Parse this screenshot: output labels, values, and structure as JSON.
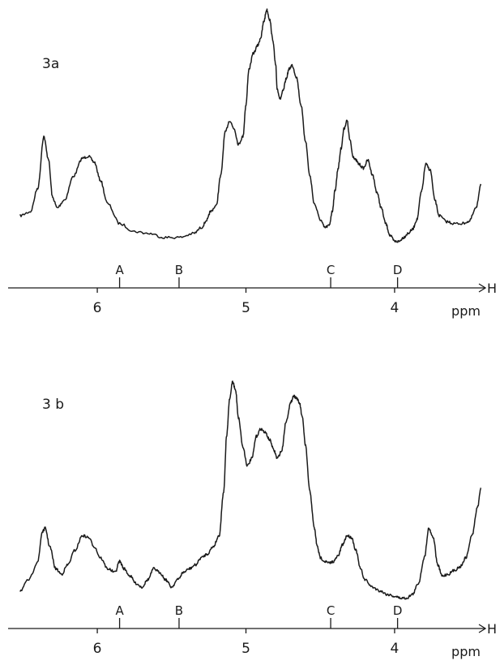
{
  "chart_data": [
    {
      "type": "line",
      "panel_label": "3a",
      "x_unit": "ppm",
      "x_axis_end_label": "H",
      "x_ticks": [
        "6",
        "5",
        "4"
      ],
      "xlim": [
        6.6,
        3.4
      ],
      "ylim": [
        0,
        1.2
      ],
      "markers": [
        {
          "label": "A",
          "ppm": 5.85
        },
        {
          "label": "B",
          "ppm": 5.45
        },
        {
          "label": "C",
          "ppm": 4.43
        },
        {
          "label": "D",
          "ppm": 3.98
        }
      ],
      "series": [
        {
          "x": [
            6.52,
            6.45,
            6.4,
            6.36,
            6.33,
            6.3,
            6.27,
            6.22,
            6.16,
            6.1,
            6.06,
            6.02,
            5.98,
            5.93,
            5.85,
            5.75,
            5.65,
            5.55,
            5.45,
            5.35,
            5.3,
            5.26,
            5.24,
            5.2,
            5.17,
            5.14,
            5.11,
            5.08,
            5.05,
            5.02,
            5.0,
            4.98,
            4.95,
            4.92,
            4.9,
            4.88,
            4.86,
            4.84,
            4.82,
            4.8,
            4.79,
            4.77,
            4.75,
            4.73,
            4.71,
            4.69,
            4.66,
            4.63,
            4.6,
            4.57,
            4.54,
            4.5,
            4.47,
            4.44,
            4.42,
            4.4,
            4.38,
            4.36,
            4.34,
            4.32,
            4.3,
            4.28,
            4.26,
            4.24,
            4.21,
            4.18,
            4.15,
            4.12,
            4.09,
            4.06,
            4.03,
            4.0,
            3.97,
            3.94,
            3.91,
            3.88,
            3.85,
            3.82,
            3.79,
            3.76,
            3.73,
            3.7,
            3.65,
            3.6,
            3.55,
            3.5,
            3.45,
            3.42
          ],
          "y": [
            0.16,
            0.18,
            0.3,
            0.56,
            0.45,
            0.25,
            0.2,
            0.24,
            0.36,
            0.45,
            0.46,
            0.43,
            0.34,
            0.22,
            0.12,
            0.08,
            0.07,
            0.05,
            0.05,
            0.07,
            0.1,
            0.14,
            0.18,
            0.21,
            0.36,
            0.58,
            0.64,
            0.6,
            0.52,
            0.56,
            0.72,
            0.9,
            0.98,
            1.02,
            1.06,
            1.14,
            1.2,
            1.15,
            1.05,
            0.92,
            0.8,
            0.75,
            0.79,
            0.85,
            0.9,
            0.92,
            0.86,
            0.72,
            0.54,
            0.36,
            0.22,
            0.14,
            0.1,
            0.11,
            0.18,
            0.29,
            0.4,
            0.5,
            0.6,
            0.64,
            0.54,
            0.46,
            0.44,
            0.42,
            0.4,
            0.44,
            0.37,
            0.28,
            0.2,
            0.12,
            0.06,
            0.03,
            0.03,
            0.05,
            0.07,
            0.09,
            0.14,
            0.28,
            0.42,
            0.39,
            0.24,
            0.16,
            0.13,
            0.12,
            0.12,
            0.13,
            0.2,
            0.32
          ]
        }
      ]
    },
    {
      "type": "line",
      "panel_label": "3 b",
      "x_unit": "ppm",
      "x_axis_end_label": "H",
      "x_ticks": [
        "6",
        "5",
        "4"
      ],
      "xlim": [
        6.6,
        3.4
      ],
      "ylim": [
        0,
        1.2
      ],
      "markers": [
        {
          "label": "A",
          "ppm": 5.85
        },
        {
          "label": "B",
          "ppm": 5.45
        },
        {
          "label": "C",
          "ppm": 4.43
        },
        {
          "label": "D",
          "ppm": 3.98
        }
      ],
      "series": [
        {
          "x": [
            6.52,
            6.46,
            6.4,
            6.37,
            6.35,
            6.32,
            6.28,
            6.24,
            6.2,
            6.15,
            6.1,
            6.06,
            6.02,
            5.98,
            5.93,
            5.88,
            5.85,
            5.82,
            5.78,
            5.74,
            5.7,
            5.66,
            5.62,
            5.58,
            5.54,
            5.5,
            5.46,
            5.42,
            5.38,
            5.34,
            5.3,
            5.26,
            5.22,
            5.18,
            5.15,
            5.13,
            5.11,
            5.09,
            5.07,
            5.05,
            5.02,
            4.99,
            4.96,
            4.93,
            4.9,
            4.87,
            4.84,
            4.81,
            4.79,
            4.76,
            4.73,
            4.7,
            4.68,
            4.66,
            4.64,
            4.62,
            4.6,
            4.57,
            4.54,
            4.52,
            4.5,
            4.47,
            4.44,
            4.41,
            4.38,
            4.35,
            4.32,
            4.29,
            4.26,
            4.23,
            4.2,
            4.15,
            4.1,
            4.05,
            4.0,
            3.96,
            3.92,
            3.88,
            3.84,
            3.8,
            3.77,
            3.74,
            3.71,
            3.68,
            3.64,
            3.6,
            3.56,
            3.52,
            3.48,
            3.44,
            3.42
          ],
          "y": [
            0.06,
            0.12,
            0.22,
            0.38,
            0.4,
            0.3,
            0.18,
            0.15,
            0.2,
            0.28,
            0.36,
            0.35,
            0.3,
            0.24,
            0.18,
            0.16,
            0.22,
            0.18,
            0.14,
            0.1,
            0.08,
            0.12,
            0.18,
            0.16,
            0.12,
            0.08,
            0.12,
            0.16,
            0.18,
            0.2,
            0.24,
            0.26,
            0.3,
            0.36,
            0.6,
            0.9,
            1.1,
            1.2,
            1.15,
            1.0,
            0.84,
            0.74,
            0.78,
            0.9,
            0.94,
            0.92,
            0.88,
            0.82,
            0.78,
            0.82,
            0.98,
            1.08,
            1.12,
            1.11,
            1.08,
            1.0,
            0.85,
            0.6,
            0.4,
            0.3,
            0.24,
            0.22,
            0.21,
            0.22,
            0.25,
            0.31,
            0.36,
            0.35,
            0.28,
            0.18,
            0.12,
            0.08,
            0.06,
            0.04,
            0.03,
            0.02,
            0.02,
            0.04,
            0.1,
            0.24,
            0.4,
            0.35,
            0.2,
            0.14,
            0.15,
            0.17,
            0.19,
            0.24,
            0.36,
            0.52,
            0.62
          ]
        }
      ]
    }
  ]
}
